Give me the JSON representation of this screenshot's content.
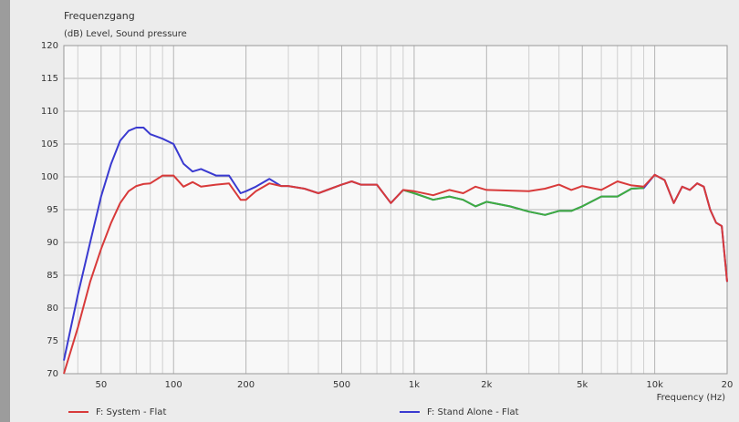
{
  "chart_data": {
    "type": "line",
    "title": "Frequenzgang",
    "subtitle": "(dB)  Level, Sound pressure",
    "x_label": "Frequency  (Hz)",
    "xscale": "log",
    "grid": true,
    "legend": "bottom",
    "xlim": [
      35,
      20000
    ],
    "ylim": [
      70,
      120
    ],
    "yticks": [
      70,
      75,
      80,
      85,
      90,
      95,
      100,
      105,
      110,
      115,
      120
    ],
    "xticks": [
      50,
      100,
      200,
      500,
      {
        "value": 1000,
        "label": "1k"
      },
      {
        "value": 2000,
        "label": "2k"
      },
      {
        "value": 5000,
        "label": "5k"
      },
      {
        "value": 10000,
        "label": "10k"
      },
      {
        "value": 20000,
        "label": "20"
      }
    ],
    "xminor": [
      40,
      60,
      70,
      80,
      90,
      300,
      400,
      600,
      700,
      800,
      900,
      3000,
      4000,
      6000,
      7000,
      8000,
      9000
    ],
    "x": [
      35,
      40,
      45,
      50,
      55,
      60,
      65,
      70,
      75,
      80,
      90,
      100,
      110,
      120,
      130,
      150,
      170,
      190,
      200,
      220,
      250,
      280,
      300,
      350,
      400,
      450,
      500,
      550,
      600,
      700,
      800,
      900,
      1000,
      1200,
      1400,
      1600,
      1800,
      2000,
      2500,
      3000,
      3500,
      4000,
      4500,
      5000,
      6000,
      7000,
      8000,
      9000,
      10000,
      11000,
      12000,
      13000,
      14000,
      15000,
      16000,
      17000,
      18000,
      19000,
      20000
    ],
    "series": [
      {
        "name": "F: Stand Alone - Flat",
        "color": "#3a3ad0",
        "values": [
          72,
          82,
          90,
          97,
          102,
          105.5,
          107,
          107.5,
          107.5,
          106.5,
          105.8,
          105,
          102,
          100.8,
          101.2,
          100.2,
          100.2,
          97.5,
          97.8,
          98.5,
          99.7,
          98.6,
          98.6,
          98.2,
          97.5,
          98.2,
          98.8,
          99.3,
          98.8,
          98.8,
          96,
          98,
          97.5,
          96.5,
          97,
          96.5,
          95.5,
          96.2,
          95.5,
          94.7,
          94.2,
          94.8,
          94.8,
          95.5,
          97,
          97,
          98.2,
          98.3,
          100.3,
          99.5,
          96,
          98.5,
          98,
          99,
          98.5,
          95,
          93,
          92.5,
          84
        ]
      },
      {
        "color": "#3fae3f",
        "values": [
          null,
          null,
          null,
          null,
          null,
          null,
          null,
          null,
          null,
          null,
          null,
          null,
          null,
          null,
          null,
          null,
          null,
          null,
          null,
          null,
          null,
          null,
          null,
          null,
          null,
          null,
          null,
          null,
          null,
          null,
          null,
          98,
          97.5,
          96.5,
          97,
          96.5,
          95.5,
          96.2,
          95.5,
          94.7,
          94.2,
          94.8,
          94.8,
          95.5,
          97,
          97,
          98.2,
          98.3,
          null,
          null,
          null,
          null,
          null,
          null,
          null,
          null,
          null,
          null,
          null
        ]
      },
      {
        "name": "F: System - Flat",
        "color": "#d83a3a",
        "values": [
          70,
          77,
          84,
          89,
          93,
          96,
          97.8,
          98.6,
          98.9,
          99,
          100.2,
          100.2,
          98.5,
          99.2,
          98.5,
          98.8,
          99,
          96.5,
          96.5,
          97.8,
          99,
          98.6,
          98.6,
          98.2,
          97.5,
          98.2,
          98.8,
          99.3,
          98.8,
          98.8,
          96,
          98,
          97.8,
          97.2,
          98,
          97.5,
          98.5,
          98,
          97.9,
          97.8,
          98.2,
          98.8,
          98,
          98.6,
          98,
          99.3,
          98.7,
          98.5,
          100.3,
          99.5,
          96,
          98.5,
          98,
          99,
          98.5,
          95,
          93,
          92.5,
          84
        ]
      }
    ]
  }
}
